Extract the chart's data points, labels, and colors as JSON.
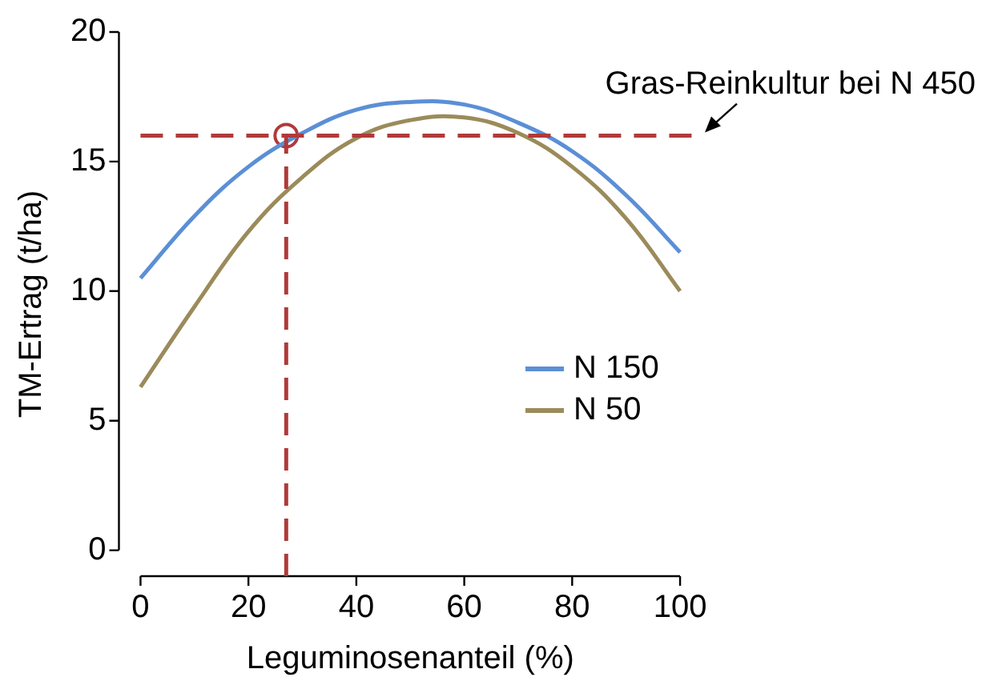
{
  "chart_data": {
    "type": "line",
    "xlabel": "Leguminosenanteil (%)",
    "ylabel": "TM-Ertrag (t/ha)",
    "x": [
      0,
      10,
      20,
      30,
      40,
      50,
      60,
      70,
      80,
      90,
      100
    ],
    "series": [
      {
        "name": "N 150",
        "color": "#5b8fd6",
        "values": [
          10.5,
          12.9,
          14.8,
          16.1,
          17.0,
          17.3,
          17.2,
          16.5,
          15.4,
          13.7,
          11.5
        ]
      },
      {
        "name": "N 50",
        "color": "#9b8b5a",
        "values": [
          6.3,
          9.4,
          12.3,
          14.4,
          15.9,
          16.6,
          16.7,
          16.1,
          14.8,
          12.8,
          10.0
        ]
      },
      {
        "type": "scatter",
        "color": "#b03a3a",
        "x": [
          27
        ],
        "values": [
          16
        ],
        "marker": "circle"
      }
    ],
    "ref_lines": [
      {
        "axis": "y",
        "value": 16,
        "label": "Gras-Reinkultur bei N 450",
        "color": "#b03a3a",
        "line_style": "dashed"
      },
      {
        "axis": "x",
        "value": 27,
        "color": "#b03a3a",
        "line_style": "dashed"
      }
    ],
    "xlim": [
      -4,
      104
    ],
    "xticks": [
      0,
      20,
      40,
      60,
      80,
      100
    ],
    "ylim": [
      -1,
      20
    ],
    "yticks": [
      0,
      5,
      10,
      15,
      20
    ],
    "grid": false,
    "legend": "right",
    "marker": "none",
    "line_style": "solid"
  }
}
